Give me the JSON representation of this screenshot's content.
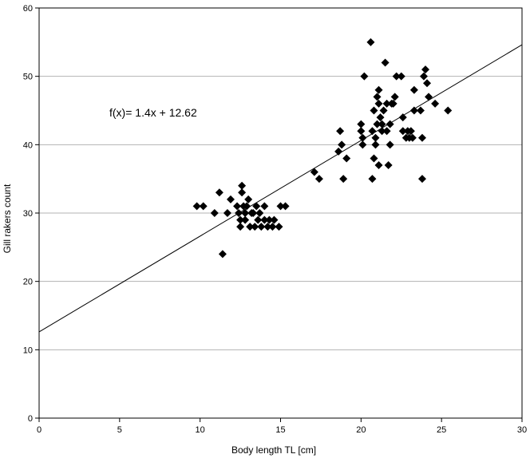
{
  "chart_data": {
    "type": "scatter",
    "xlabel": "Body length TL [cm]",
    "ylabel": "Gill rakers count",
    "xlim": [
      0,
      30
    ],
    "ylim": [
      0,
      60
    ],
    "xticks": [
      0,
      5,
      10,
      15,
      20,
      25,
      30
    ],
    "yticks": [
      0,
      10,
      20,
      30,
      40,
      50,
      60
    ],
    "grid": "horizontal",
    "legend": "none",
    "marker": "diamond",
    "marker_color": "#000000",
    "trendline": {
      "slope": 1.4,
      "intercept": 12.62,
      "color": "#000000"
    },
    "annotation": "f(x)= 1.4x + 12.62",
    "points": [
      [
        9.8,
        31
      ],
      [
        10.2,
        31
      ],
      [
        10.9,
        30
      ],
      [
        11.2,
        33
      ],
      [
        11.4,
        24
      ],
      [
        11.7,
        30
      ],
      [
        11.9,
        32
      ],
      [
        12.3,
        31
      ],
      [
        12.4,
        30
      ],
      [
        12.5,
        28
      ],
      [
        12.5,
        29
      ],
      [
        12.6,
        33
      ],
      [
        12.6,
        34
      ],
      [
        12.7,
        31
      ],
      [
        12.8,
        30
      ],
      [
        12.8,
        29
      ],
      [
        12.9,
        31
      ],
      [
        13.0,
        32
      ],
      [
        13.1,
        28
      ],
      [
        13.2,
        30
      ],
      [
        13.3,
        30
      ],
      [
        13.4,
        28
      ],
      [
        13.5,
        31
      ],
      [
        13.6,
        29
      ],
      [
        13.7,
        30
      ],
      [
        13.8,
        28
      ],
      [
        14.0,
        31
      ],
      [
        14.0,
        29
      ],
      [
        14.2,
        28
      ],
      [
        14.3,
        29
      ],
      [
        14.5,
        28
      ],
      [
        14.6,
        29
      ],
      [
        14.9,
        28
      ],
      [
        15.0,
        31
      ],
      [
        15.3,
        31
      ],
      [
        17.1,
        36
      ],
      [
        17.4,
        35
      ],
      [
        18.6,
        39
      ],
      [
        18.7,
        42
      ],
      [
        18.8,
        40
      ],
      [
        18.9,
        35
      ],
      [
        19.1,
        38
      ],
      [
        20.0,
        42
      ],
      [
        20.0,
        43
      ],
      [
        20.1,
        40
      ],
      [
        20.1,
        41
      ],
      [
        20.2,
        50
      ],
      [
        20.6,
        55
      ],
      [
        20.7,
        35
      ],
      [
        20.7,
        42
      ],
      [
        20.8,
        38
      ],
      [
        20.8,
        45
      ],
      [
        20.9,
        41
      ],
      [
        20.9,
        40
      ],
      [
        21.0,
        43
      ],
      [
        21.0,
        47
      ],
      [
        21.1,
        48
      ],
      [
        21.1,
        46
      ],
      [
        21.1,
        37
      ],
      [
        21.2,
        44
      ],
      [
        21.3,
        43
      ],
      [
        21.3,
        42
      ],
      [
        21.4,
        45
      ],
      [
        21.5,
        52
      ],
      [
        21.6,
        46
      ],
      [
        21.6,
        42
      ],
      [
        21.7,
        37
      ],
      [
        21.8,
        40
      ],
      [
        21.8,
        43
      ],
      [
        21.9,
        46
      ],
      [
        22.0,
        46
      ],
      [
        22.1,
        47
      ],
      [
        22.2,
        50
      ],
      [
        22.5,
        50
      ],
      [
        22.6,
        44
      ],
      [
        22.6,
        42
      ],
      [
        22.8,
        41
      ],
      [
        22.9,
        42
      ],
      [
        23.0,
        41
      ],
      [
        23.1,
        42
      ],
      [
        23.2,
        41
      ],
      [
        23.3,
        45
      ],
      [
        23.3,
        48
      ],
      [
        23.7,
        45
      ],
      [
        23.8,
        41
      ],
      [
        23.8,
        35
      ],
      [
        23.9,
        50
      ],
      [
        24.0,
        51
      ],
      [
        24.1,
        49
      ],
      [
        24.2,
        47
      ],
      [
        24.6,
        46
      ],
      [
        25.4,
        45
      ]
    ]
  }
}
